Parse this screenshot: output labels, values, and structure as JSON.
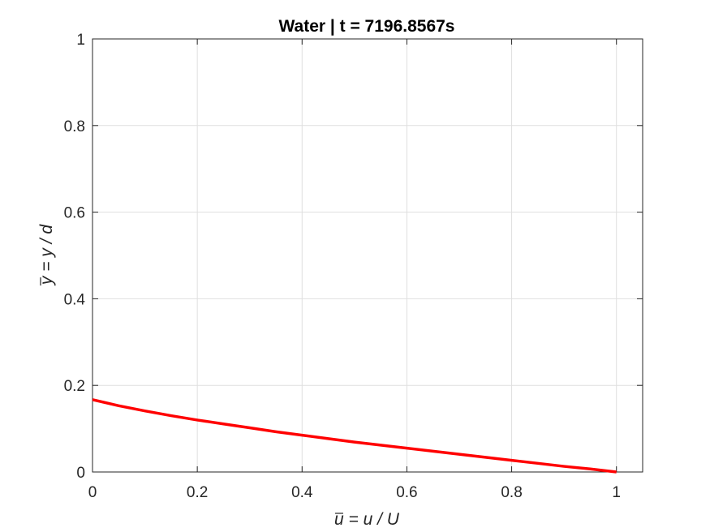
{
  "chart_data": {
    "type": "line",
    "title": "Water | t = 7196.8567s",
    "xlabel": "u = u / U",
    "xlabel_overline_char": "u",
    "ylabel": "y = y / d",
    "ylabel_overline_char": "y",
    "xlim": [
      0,
      1.05
    ],
    "ylim": [
      0,
      1
    ],
    "xticks": [
      0,
      0.2,
      0.4,
      0.6,
      0.8,
      1
    ],
    "xtick_labels": [
      "0",
      "0.2",
      "0.4",
      "0.6",
      "0.8",
      "1"
    ],
    "yticks": [
      0,
      0.2,
      0.4,
      0.6,
      0.8,
      1
    ],
    "ytick_labels": [
      "0",
      "0.2",
      "0.4",
      "0.6",
      "0.8",
      "1"
    ],
    "grid": true,
    "legend": "none",
    "series": [
      {
        "color": "#ff0000",
        "x": [
          0,
          0.05,
          0.1,
          0.15,
          0.2,
          0.25,
          0.3,
          0.35,
          0.4,
          0.45,
          0.5,
          0.55,
          0.6,
          0.65,
          0.7,
          0.75,
          0.8,
          0.85,
          0.9,
          0.95,
          1.0
        ],
        "y": [
          0.167,
          0.153,
          0.141,
          0.13,
          0.12,
          0.111,
          0.102,
          0.093,
          0.085,
          0.077,
          0.069,
          0.062,
          0.055,
          0.048,
          0.041,
          0.034,
          0.027,
          0.02,
          0.013,
          0.007,
          0.0
        ]
      }
    ]
  }
}
